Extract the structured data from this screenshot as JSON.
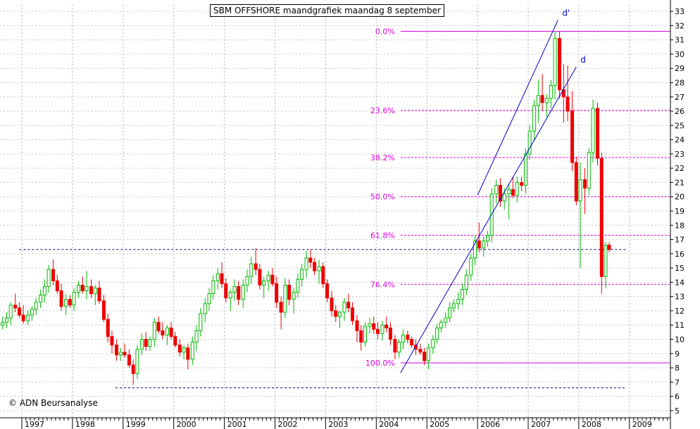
{
  "title": "SBM OFFSHORE maandgrafiek maandag 8 september",
  "copyright": "© ADN Beursanalyse",
  "chart_data": {
    "type": "candlestick",
    "x_axis": {
      "labels": [
        "1997",
        "1998",
        "1999",
        "2000",
        "2001",
        "2002",
        "2003",
        "2004",
        "2005",
        "2006",
        "2007",
        "2008",
        "2009"
      ]
    },
    "y_axis": {
      "min": 4.5,
      "max": 33.5,
      "ticks": [
        5,
        6,
        7,
        8,
        9,
        10,
        11,
        12,
        13,
        14,
        15,
        16,
        17,
        18,
        19,
        20,
        21,
        22,
        23,
        24,
        25,
        26,
        27,
        28,
        29,
        30,
        31,
        32,
        33
      ]
    },
    "grid": true,
    "colors": {
      "up": "#00bb00",
      "down": "#ee0000",
      "fibonacci": "#dd00dd",
      "trend": "#0000cc",
      "support": "#000080"
    },
    "candles": [
      [
        1996.2,
        9.2,
        9.0,
        10.2,
        9.8
      ],
      [
        1996.28,
        9.8,
        9.4,
        10.5,
        10.0
      ],
      [
        1996.37,
        10.0,
        9.8,
        11.0,
        10.6
      ],
      [
        1996.45,
        10.6,
        10.2,
        11.3,
        10.5
      ],
      [
        1996.53,
        10.5,
        10.2,
        11.2,
        11.0
      ],
      [
        1996.62,
        11.0,
        10.7,
        11.6,
        11.2
      ],
      [
        1996.7,
        11.2,
        10.8,
        11.9,
        11.5
      ],
      [
        1996.78,
        11.5,
        11.0,
        12.6,
        12.4
      ],
      [
        1996.87,
        12.4,
        11.9,
        13.2,
        12.2
      ],
      [
        1996.95,
        12.2,
        11.5,
        12.6,
        11.7
      ],
      [
        1997.03,
        11.7,
        11.1,
        12.4,
        11.3
      ],
      [
        1997.12,
        11.3,
        11.0,
        12.0,
        11.7
      ],
      [
        1997.2,
        11.7,
        11.3,
        12.3,
        12.1
      ],
      [
        1997.28,
        12.1,
        11.7,
        12.9,
        12.6
      ],
      [
        1997.37,
        12.6,
        12.2,
        13.5,
        13.1
      ],
      [
        1997.45,
        13.1,
        12.6,
        14.2,
        13.7
      ],
      [
        1997.53,
        13.7,
        13.3,
        15.2,
        14.9
      ],
      [
        1997.62,
        14.9,
        13.8,
        15.6,
        14.1
      ],
      [
        1997.7,
        14.1,
        13.2,
        14.5,
        13.4
      ],
      [
        1997.78,
        13.4,
        12.0,
        13.9,
        12.3
      ],
      [
        1997.87,
        12.3,
        11.7,
        13.2,
        12.8
      ],
      [
        1997.95,
        12.8,
        12.2,
        13.1,
        12.4
      ],
      [
        1998.03,
        12.4,
        12.0,
        13.6,
        13.3
      ],
      [
        1998.12,
        13.3,
        12.9,
        14.1,
        13.8
      ],
      [
        1998.2,
        13.8,
        13.2,
        14.4,
        13.4
      ],
      [
        1998.28,
        13.4,
        12.8,
        14.8,
        13.7
      ],
      [
        1998.37,
        13.7,
        12.9,
        14.2,
        13.2
      ],
      [
        1998.45,
        13.2,
        12.4,
        13.8,
        13.6
      ],
      [
        1998.53,
        13.6,
        12.5,
        14.1,
        12.7
      ],
      [
        1998.62,
        12.7,
        11.2,
        13.1,
        11.4
      ],
      [
        1998.7,
        11.4,
        9.8,
        11.8,
        10.2
      ],
      [
        1998.78,
        10.2,
        9.0,
        10.6,
        9.6
      ],
      [
        1998.87,
        9.6,
        8.5,
        10.0,
        8.9
      ],
      [
        1998.95,
        8.9,
        8.5,
        9.4,
        9.1
      ],
      [
        1999.03,
        9.1,
        8.7,
        9.7,
        8.9
      ],
      [
        1999.12,
        8.9,
        8.0,
        9.3,
        8.2
      ],
      [
        1999.2,
        8.2,
        6.8,
        8.6,
        7.6
      ],
      [
        1999.28,
        7.6,
        7.2,
        9.6,
        9.3
      ],
      [
        1999.37,
        9.3,
        8.9,
        10.4,
        10.0
      ],
      [
        1999.45,
        10.0,
        9.2,
        10.5,
        9.5
      ],
      [
        1999.53,
        9.5,
        9.2,
        10.2,
        10.0
      ],
      [
        1999.62,
        10.0,
        9.5,
        11.5,
        11.2
      ],
      [
        1999.7,
        11.2,
        10.4,
        11.6,
        10.6
      ],
      [
        1999.78,
        10.6,
        10.0,
        11.2,
        10.3
      ],
      [
        1999.87,
        10.3,
        9.6,
        11.0,
        10.8
      ],
      [
        1999.95,
        10.8,
        10.0,
        11.2,
        10.2
      ],
      [
        2000.03,
        10.2,
        9.4,
        10.5,
        9.6
      ],
      [
        2000.12,
        9.6,
        8.8,
        10.0,
        9.1
      ],
      [
        2000.2,
        9.1,
        8.6,
        9.6,
        9.4
      ],
      [
        2000.28,
        9.4,
        7.9,
        9.7,
        8.6
      ],
      [
        2000.37,
        8.6,
        8.2,
        10.2,
        9.8
      ],
      [
        2000.45,
        9.8,
        9.2,
        11.0,
        10.6
      ],
      [
        2000.53,
        10.6,
        10.2,
        12.2,
        11.8
      ],
      [
        2000.62,
        11.8,
        11.2,
        12.9,
        12.5
      ],
      [
        2000.7,
        12.5,
        12.0,
        13.6,
        13.2
      ],
      [
        2000.78,
        13.2,
        12.8,
        14.5,
        14.1
      ],
      [
        2000.87,
        14.1,
        13.5,
        15.0,
        14.6
      ],
      [
        2000.95,
        14.6,
        13.6,
        15.4,
        13.9
      ],
      [
        2001.03,
        13.9,
        12.6,
        14.3,
        12.9
      ],
      [
        2001.12,
        12.9,
        12.0,
        13.5,
        13.3
      ],
      [
        2001.2,
        13.3,
        12.7,
        14.2,
        13.7
      ],
      [
        2001.28,
        13.7,
        12.4,
        14.1,
        12.8
      ],
      [
        2001.37,
        12.8,
        12.2,
        14.2,
        13.8
      ],
      [
        2001.45,
        13.8,
        13.3,
        14.9,
        14.4
      ],
      [
        2001.53,
        14.4,
        13.9,
        15.8,
        15.3
      ],
      [
        2001.62,
        15.3,
        14.5,
        16.4,
        14.9
      ],
      [
        2001.7,
        14.9,
        13.5,
        15.3,
        13.8
      ],
      [
        2001.78,
        13.8,
        12.9,
        14.4,
        14.1
      ],
      [
        2001.87,
        14.1,
        13.4,
        14.8,
        14.5
      ],
      [
        2001.95,
        14.5,
        13.7,
        15.0,
        13.9
      ],
      [
        2002.03,
        13.9,
        12.2,
        14.4,
        12.6
      ],
      [
        2002.12,
        12.6,
        10.7,
        13.0,
        11.9
      ],
      [
        2002.2,
        11.9,
        11.5,
        14.3,
        13.8
      ],
      [
        2002.28,
        13.8,
        12.4,
        14.2,
        12.8
      ],
      [
        2002.37,
        12.8,
        11.8,
        13.6,
        13.3
      ],
      [
        2002.45,
        13.3,
        12.9,
        14.6,
        14.2
      ],
      [
        2002.53,
        14.2,
        13.7,
        15.3,
        14.9
      ],
      [
        2002.62,
        14.9,
        14.3,
        16.2,
        15.7
      ],
      [
        2002.7,
        15.7,
        15.0,
        16.3,
        15.4
      ],
      [
        2002.78,
        15.4,
        14.5,
        15.7,
        14.8
      ],
      [
        2002.87,
        14.8,
        13.9,
        15.6,
        15.1
      ],
      [
        2002.95,
        15.1,
        13.6,
        15.4,
        13.9
      ],
      [
        2003.03,
        13.9,
        12.6,
        14.2,
        12.9
      ],
      [
        2003.12,
        12.9,
        11.6,
        13.4,
        12.0
      ],
      [
        2003.2,
        12.0,
        11.2,
        12.4,
        11.6
      ],
      [
        2003.28,
        11.6,
        10.8,
        12.0,
        11.9
      ],
      [
        2003.37,
        11.9,
        11.3,
        12.9,
        12.6
      ],
      [
        2003.45,
        12.6,
        11.9,
        13.2,
        12.2
      ],
      [
        2003.53,
        12.2,
        11.0,
        12.6,
        11.3
      ],
      [
        2003.62,
        11.3,
        9.8,
        11.7,
        10.6
      ],
      [
        2003.7,
        10.6,
        9.2,
        11.0,
        9.8
      ],
      [
        2003.78,
        9.8,
        9.5,
        11.2,
        10.9
      ],
      [
        2003.87,
        10.9,
        10.4,
        11.5,
        11.1
      ],
      [
        2003.95,
        11.1,
        10.4,
        11.6,
        10.7
      ],
      [
        2004.03,
        10.7,
        10.0,
        11.2,
        10.4
      ],
      [
        2004.12,
        10.4,
        9.9,
        11.3,
        11.0
      ],
      [
        2004.2,
        11.0,
        10.5,
        11.6,
        10.8
      ],
      [
        2004.28,
        10.8,
        9.6,
        11.2,
        10.0
      ],
      [
        2004.37,
        10.0,
        8.6,
        10.3,
        9.1
      ],
      [
        2004.45,
        9.1,
        8.7,
        10.0,
        9.8
      ],
      [
        2004.53,
        9.8,
        9.3,
        10.7,
        10.3
      ],
      [
        2004.62,
        10.3,
        9.7,
        10.6,
        10.0
      ],
      [
        2004.7,
        10.0,
        9.4,
        10.2,
        9.6
      ],
      [
        2004.78,
        9.6,
        8.9,
        10.0,
        9.3
      ],
      [
        2004.87,
        9.3,
        8.9,
        9.7,
        9.1
      ],
      [
        2004.95,
        9.1,
        8.2,
        9.4,
        8.5
      ],
      [
        2005.03,
        8.5,
        7.9,
        9.7,
        9.4
      ],
      [
        2005.12,
        9.4,
        9.0,
        10.3,
        10.0
      ],
      [
        2005.2,
        10.0,
        9.7,
        11.1,
        10.8
      ],
      [
        2005.28,
        10.8,
        10.5,
        11.4,
        11.2
      ],
      [
        2005.37,
        11.2,
        10.8,
        11.9,
        11.5
      ],
      [
        2005.45,
        11.5,
        11.2,
        12.6,
        12.2
      ],
      [
        2005.53,
        12.2,
        11.9,
        12.8,
        12.5
      ],
      [
        2005.62,
        12.5,
        12.1,
        13.3,
        12.8
      ],
      [
        2005.7,
        12.8,
        12.4,
        13.9,
        13.5
      ],
      [
        2005.78,
        13.5,
        13.1,
        14.9,
        14.5
      ],
      [
        2005.87,
        14.5,
        14.1,
        16.0,
        15.7
      ],
      [
        2005.95,
        15.7,
        15.2,
        17.3,
        16.9
      ],
      [
        2006.03,
        16.9,
        16.1,
        18.2,
        16.4
      ],
      [
        2006.12,
        16.4,
        15.8,
        17.2,
        16.9
      ],
      [
        2006.2,
        16.9,
        16.5,
        17.6,
        17.3
      ],
      [
        2006.28,
        17.3,
        16.8,
        20.6,
        20.2
      ],
      [
        2006.37,
        20.2,
        19.5,
        21.2,
        20.8
      ],
      [
        2006.45,
        20.8,
        19.3,
        21.3,
        19.7
      ],
      [
        2006.53,
        19.7,
        19.1,
        20.6,
        20.2
      ],
      [
        2006.62,
        20.2,
        18.4,
        20.9,
        20.5
      ],
      [
        2006.7,
        20.5,
        19.9,
        21.4,
        20.1
      ],
      [
        2006.78,
        20.1,
        19.6,
        21.4,
        21.0
      ],
      [
        2006.87,
        21.0,
        20.4,
        21.4,
        20.8
      ],
      [
        2006.95,
        20.8,
        20.2,
        23.4,
        23.0
      ],
      [
        2007.03,
        23.0,
        22.6,
        25.0,
        24.6
      ],
      [
        2007.12,
        24.6,
        24.0,
        26.8,
        26.4
      ],
      [
        2007.2,
        26.4,
        25.2,
        28.2,
        27.1
      ],
      [
        2007.28,
        27.1,
        26.0,
        28.6,
        26.6
      ],
      [
        2007.37,
        26.6,
        25.6,
        27.2,
        26.9
      ],
      [
        2007.45,
        26.9,
        26.2,
        28.2,
        27.8
      ],
      [
        2007.53,
        27.8,
        26.8,
        31.6,
        31.1
      ],
      [
        2007.62,
        31.1,
        26.9,
        31.6,
        27.5
      ],
      [
        2007.7,
        27.5,
        25.2,
        29.3,
        27.0
      ],
      [
        2007.78,
        27.0,
        25.3,
        29.2,
        26.0
      ],
      [
        2007.87,
        26.0,
        21.8,
        27.4,
        22.4
      ],
      [
        2007.95,
        22.4,
        19.4,
        22.8,
        19.7
      ],
      [
        2008.03,
        19.7,
        15.0,
        22.4,
        21.2
      ],
      [
        2008.12,
        21.2,
        18.8,
        22.0,
        20.6
      ],
      [
        2008.2,
        20.6,
        20.1,
        23.4,
        23.1
      ],
      [
        2008.28,
        23.1,
        22.4,
        26.8,
        26.2
      ],
      [
        2008.37,
        26.2,
        22.2,
        26.6,
        22.7
      ],
      [
        2008.45,
        22.7,
        13.2,
        23.1,
        14.4
      ],
      [
        2008.53,
        14.4,
        13.6,
        16.8,
        16.6
      ],
      [
        2008.6,
        16.6,
        16.1,
        16.8,
        16.3
      ]
    ],
    "fibonacci_levels": [
      {
        "label": "0.0%",
        "value": 31.6
      },
      {
        "label": "23.6%",
        "value": 26.05
      },
      {
        "label": "38.2%",
        "value": 22.75
      },
      {
        "label": "50.0%",
        "value": 20.0
      },
      {
        "label": "61.8%",
        "value": 17.3
      },
      {
        "label": "76.4%",
        "value": 13.85
      },
      {
        "label": "100.0%",
        "value": 8.35
      }
    ],
    "trendlines": [
      {
        "label": "d'",
        "from": [
          2006.0,
          20.1
        ],
        "to": [
          2007.59,
          32.4
        ]
      },
      {
        "label": "d",
        "from": [
          2004.48,
          7.65
        ],
        "to": [
          2007.95,
          29.1
        ]
      }
    ],
    "support_lines": [
      {
        "from": 1996.95,
        "to": 2008.95,
        "value": 16.3
      },
      {
        "from": 1998.85,
        "to": 2008.92,
        "value": 6.6
      }
    ]
  }
}
